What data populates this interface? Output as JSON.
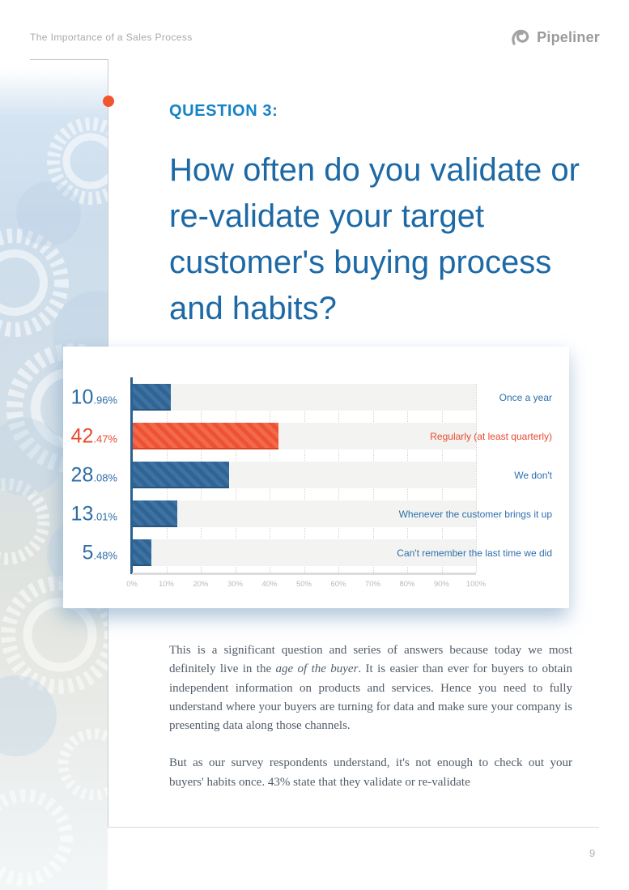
{
  "header": {
    "doc_title": "The Importance of a Sales Process",
    "brand": "Pipeliner"
  },
  "question": {
    "kicker": "QUESTION 3:",
    "title": "How often do you validate or re-validate your target customer's buying process and habits?"
  },
  "chart_data": {
    "type": "bar",
    "orientation": "horizontal",
    "title": "",
    "xlabel": "",
    "ylabel": "",
    "xlim": [
      0,
      100
    ],
    "grid": "vertical-dotted",
    "categories": [
      "Once a year",
      "Regularly (at least quarterly)",
      "We don't",
      "Whenever the customer brings it up",
      "Can't remember the last time we did"
    ],
    "values": [
      10.96,
      42.47,
      28.08,
      13.01,
      5.48
    ],
    "value_labels": [
      {
        "int": "10",
        "dec": ".96%"
      },
      {
        "int": "42",
        "dec": ".47%"
      },
      {
        "int": "28",
        "dec": ".08%"
      },
      {
        "int": "13",
        "dec": ".01%"
      },
      {
        "int": "5",
        "dec": ".48%"
      }
    ],
    "highlight_index": 1,
    "xticks": [
      "0%",
      "10%",
      "20%",
      "30%",
      "40%",
      "50%",
      "60%",
      "70%",
      "80%",
      "90%",
      "100%"
    ],
    "colors": {
      "bar_blue": "#31689B",
      "bar_orange": "#EF5535",
      "label_blue": "#2E6DA6",
      "label_orange": "#E8492F"
    }
  },
  "body": {
    "para1_before": "This is a significant question and series of answers because today we most definitely live in the ",
    "para1_italic": "age of the buyer",
    "para1_after": ". It is easier than ever for buyers to obtain independent information on products and services. Hence you need to fully understand where your buyers are turning for data and make sure your company is presenting data along those channels.",
    "para2": "But as our survey respondents understand, it's not enough to check out your buyers' habits once. 43% state that they validate or re-validate"
  },
  "footer": {
    "page_number": "9"
  }
}
